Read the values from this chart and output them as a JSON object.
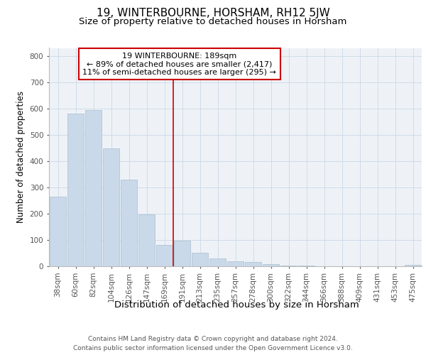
{
  "title": "19, WINTERBOURNE, HORSHAM, RH12 5JW",
  "subtitle": "Size of property relative to detached houses in Horsham",
  "xlabel": "Distribution of detached houses by size in Horsham",
  "ylabel": "Number of detached properties",
  "categories": [
    "38sqm",
    "60sqm",
    "82sqm",
    "104sqm",
    "126sqm",
    "147sqm",
    "169sqm",
    "191sqm",
    "213sqm",
    "235sqm",
    "257sqm",
    "278sqm",
    "300sqm",
    "322sqm",
    "344sqm",
    "366sqm",
    "388sqm",
    "409sqm",
    "431sqm",
    "453sqm",
    "475sqm"
  ],
  "values": [
    265,
    580,
    595,
    448,
    330,
    198,
    82,
    98,
    50,
    30,
    20,
    15,
    8,
    3,
    2,
    1,
    0,
    0,
    0,
    0,
    5
  ],
  "bar_color": "#c9d9e9",
  "bar_edge_color": "#a8bfcf",
  "grid_color": "#d0dce8",
  "background_color": "#eef2f7",
  "vline_x_index": 7,
  "vline_color": "#cc0000",
  "annotation_text": "19 WINTERBOURNE: 189sqm\n← 89% of detached houses are smaller (2,417)\n11% of semi-detached houses are larger (295) →",
  "annotation_box_color": "#cc0000",
  "footer": "Contains HM Land Registry data © Crown copyright and database right 2024.\nContains public sector information licensed under the Open Government Licence v3.0.",
  "ylim": [
    0,
    830
  ],
  "yticks": [
    0,
    100,
    200,
    300,
    400,
    500,
    600,
    700,
    800
  ],
  "title_fontsize": 11,
  "subtitle_fontsize": 9.5,
  "xlabel_fontsize": 9.5,
  "ylabel_fontsize": 8.5,
  "tick_fontsize": 7.5,
  "footer_fontsize": 6.5,
  "annotation_fontsize": 8
}
